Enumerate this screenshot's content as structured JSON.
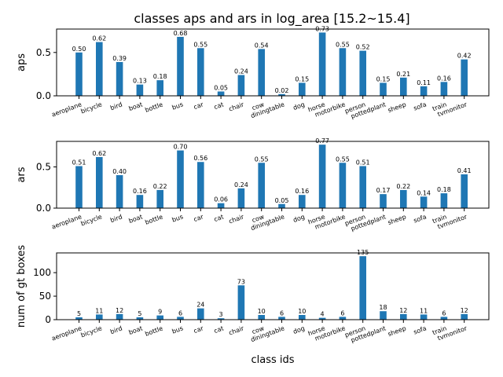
{
  "title": "classes aps and ars in log_area [15.2~15.4]",
  "chart_data": [
    {
      "type": "bar",
      "ylabel": "aps",
      "ylim": [
        0,
        0.77
      ],
      "yticks": [
        0.0,
        0.5
      ],
      "ytick_labels": [
        "0.0",
        "0.5"
      ],
      "categories": [
        "aeroplane",
        "bicycle",
        "bird",
        "boat",
        "bottle",
        "bus",
        "car",
        "cat",
        "chair",
        "cow",
        "diningtable",
        "dog",
        "horse",
        "motorbike",
        "person",
        "pottedplant",
        "sheep",
        "sofa",
        "train",
        "tvmonitor"
      ],
      "values": [
        0.5,
        0.62,
        0.39,
        0.13,
        0.18,
        0.68,
        0.55,
        0.05,
        0.24,
        0.54,
        0.02,
        0.15,
        0.73,
        0.55,
        0.52,
        0.15,
        0.21,
        0.11,
        0.16,
        0.42
      ],
      "value_labels": [
        "0.50",
        "0.62",
        "0.39",
        "0.13",
        "0.18",
        "0.68",
        "0.55",
        "0.05",
        "0.24",
        "0.54",
        "0.02",
        "0.15",
        "0.73",
        "0.55",
        "0.52",
        "0.15",
        "0.21",
        "0.11",
        "0.16",
        "0.42"
      ],
      "color": "#1f77b4"
    },
    {
      "type": "bar",
      "ylabel": "ars",
      "ylim": [
        0,
        0.81
      ],
      "yticks": [
        0.0,
        0.5
      ],
      "ytick_labels": [
        "0.0",
        "0.5"
      ],
      "categories": [
        "aeroplane",
        "bicycle",
        "bird",
        "boat",
        "bottle",
        "bus",
        "car",
        "cat",
        "chair",
        "cow",
        "diningtable",
        "dog",
        "horse",
        "motorbike",
        "person",
        "pottedplant",
        "sheep",
        "sofa",
        "train",
        "tvmonitor"
      ],
      "values": [
        0.51,
        0.62,
        0.4,
        0.16,
        0.22,
        0.7,
        0.56,
        0.06,
        0.24,
        0.55,
        0.05,
        0.16,
        0.77,
        0.55,
        0.51,
        0.17,
        0.22,
        0.14,
        0.18,
        0.41
      ],
      "value_labels": [
        "0.51",
        "0.62",
        "0.40",
        "0.16",
        "0.22",
        "0.70",
        "0.56",
        "0.06",
        "0.24",
        "0.55",
        "0.05",
        "0.16",
        "0.77",
        "0.55",
        "0.51",
        "0.17",
        "0.22",
        "0.14",
        "0.18",
        "0.41"
      ],
      "color": "#1f77b4"
    },
    {
      "type": "bar",
      "ylabel": "num of gt boxes",
      "xlabel": "class ids",
      "ylim": [
        0,
        142
      ],
      "yticks": [
        0,
        50,
        100
      ],
      "ytick_labels": [
        "0",
        "50",
        "100"
      ],
      "categories": [
        "aeroplane",
        "bicycle",
        "bird",
        "boat",
        "bottle",
        "bus",
        "car",
        "cat",
        "chair",
        "cow",
        "diningtable",
        "dog",
        "horse",
        "motorbike",
        "person",
        "pottedplant",
        "sheep",
        "sofa",
        "train",
        "tvmonitor"
      ],
      "values": [
        5,
        11,
        12,
        5,
        9,
        6,
        24,
        3,
        73,
        10,
        6,
        10,
        4,
        6,
        135,
        18,
        12,
        11,
        6,
        12
      ],
      "value_labels": [
        "5",
        "11",
        "12",
        "5",
        "9",
        "6",
        "24",
        "3",
        "73",
        "10",
        "6",
        "10",
        "4",
        "6",
        "135",
        "18",
        "12",
        "11",
        "6",
        "12"
      ],
      "color": "#1f77b4"
    }
  ]
}
